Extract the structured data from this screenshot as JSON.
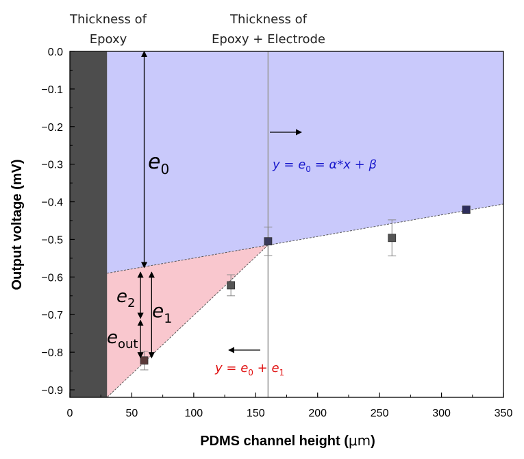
{
  "chart_data": {
    "type": "scatter",
    "xlabel": "PDMS channel height (",
    "xlabel_unit": "μm",
    "xlabel_close": ")",
    "ylabel": "Output voltage (mV)",
    "xlim": [
      0,
      350
    ],
    "ylim": [
      -0.92,
      0
    ],
    "xticks": [
      0,
      50,
      100,
      150,
      200,
      250,
      300,
      350
    ],
    "yticks": [
      0.0,
      -0.1,
      -0.2,
      -0.3,
      -0.4,
      -0.5,
      -0.6,
      -0.7,
      -0.8,
      -0.9
    ],
    "ytick_labels": [
      "0.0",
      "−0.1",
      "−0.2",
      "−0.3",
      "−0.4",
      "−0.5",
      "−0.6",
      "−0.7",
      "−0.8",
      "−0.9"
    ],
    "points": [
      {
        "x": 60,
        "y": -0.822,
        "err": 0.025,
        "color": "#5a3a3a"
      },
      {
        "x": 130,
        "y": -0.622,
        "err": 0.028,
        "color": "#555555"
      },
      {
        "x": 160,
        "y": -0.505,
        "err": 0.038,
        "color": "#3a3a5a"
      },
      {
        "x": 260,
        "y": -0.496,
        "err": 0.048,
        "color": "#555555"
      },
      {
        "x": 320,
        "y": -0.421,
        "err": 0.008,
        "color": "#2e2e5c"
      }
    ],
    "epoxy_thickness_x": 30,
    "electrode_line_x": 160,
    "blue_region": {
      "line": [
        [
          30,
          -0.59
        ],
        [
          350,
          -0.406
        ]
      ]
    },
    "red_region": {
      "vertices": [
        [
          30,
          -0.59
        ],
        [
          160,
          -0.515
        ],
        [
          30,
          -0.92
        ]
      ]
    },
    "colors": {
      "blue_fill": "#c9c9fb",
      "red_fill": "#f9c7ce",
      "epoxy": "#4d4d4d",
      "blue_text": "#1a1acc",
      "red_text": "#e01010"
    },
    "top_labels": {
      "epoxy_line1": "Thickness of",
      "epoxy_line2": "Epoxy",
      "electrode_line1": "Thickness of",
      "electrode_line2": "Epoxy + Electrode"
    },
    "annotations": {
      "e0": "e",
      "e0_sub": "0",
      "e1": "e",
      "e1_sub": "1",
      "e2": "e",
      "e2_sub": "2",
      "eout": "e",
      "eout_sub": "out",
      "blue_eq_y": "y",
      "blue_eq_eq1": " = ",
      "blue_eq_e": "e",
      "blue_eq_sub": "0",
      "blue_eq_rest": " = α*x + β",
      "red_eq_y": "y",
      "red_eq_eq1": " = ",
      "red_eq_e0": "e",
      "red_eq_sub0": "0",
      "red_eq_plus": " + ",
      "red_eq_e1": "e",
      "red_eq_sub1": "1"
    }
  }
}
